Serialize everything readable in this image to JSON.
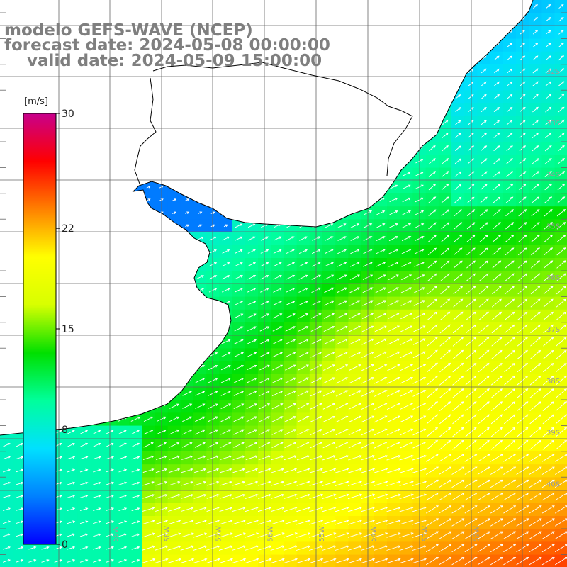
{
  "title": {
    "line1": "modelo GEFS-WAVE (NCEP)",
    "line2": "forecast date: 2024-05-08 00:00:00",
    "line3": "    valid date: 2024-05-09 15:00:00"
  },
  "colorbar": {
    "unit": "[m/s]",
    "ticks": [
      {
        "label": "30",
        "value": 30
      },
      {
        "label": "22",
        "value": 22
      },
      {
        "label": "15",
        "value": 15
      },
      {
        "label": "8",
        "value": 8
      },
      {
        "label": "0",
        "value": 0
      }
    ],
    "range": [
      0,
      30
    ],
    "colors": [
      "#0000ff",
      "#0080ff",
      "#00e0ff",
      "#00ff9c",
      "#00e000",
      "#d8ff00",
      "#ffff00",
      "#ff8000",
      "#ff0000",
      "#c8008c"
    ]
  },
  "lat_labels": [
    "32S",
    "33S",
    "34S",
    "35S",
    "36S",
    "37S",
    "38S",
    "39S",
    "40S"
  ],
  "lon_labels": [
    "59W",
    "58W",
    "57W",
    "56W",
    "55W",
    "54W",
    "53W",
    "52W"
  ],
  "colors": {
    "land": "#ffffff",
    "coast": "#000000",
    "grid": "#666666",
    "arrow": "#ffffff",
    "title": "#7f7f7f"
  },
  "chart_data": {
    "type": "heatmap",
    "variable": "wind speed",
    "unit": "m/s",
    "value_range": [
      0,
      30
    ],
    "vector_field": "white arrows, wind direction, mostly toward the northeast",
    "lat_labels": [
      "32S",
      "33S",
      "34S",
      "35S",
      "36S",
      "37S",
      "38S",
      "39S",
      "40S"
    ],
    "lon_labels": [
      "59W",
      "58W",
      "57W",
      "56W",
      "55W",
      "54W",
      "53W",
      "52W"
    ]
  }
}
